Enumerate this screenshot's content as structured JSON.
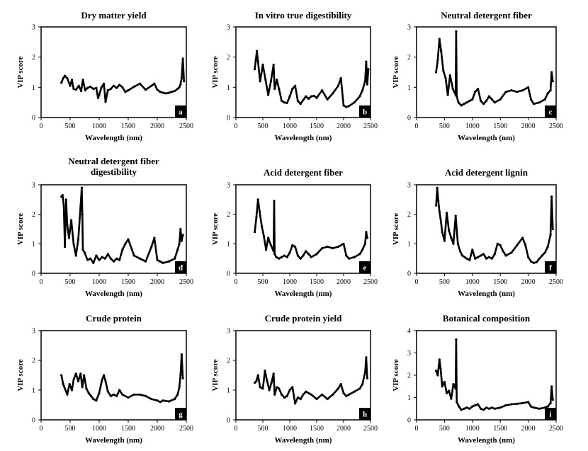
{
  "chart_data": [
    {
      "type": "line",
      "panel": "a",
      "title": "Dry matter yield",
      "xlabel": "Wavelength (nm)",
      "ylabel": "VIP score",
      "xlim": [
        0,
        2500
      ],
      "ylim": [
        0,
        3
      ],
      "xticks": [
        0,
        500,
        1000,
        1500,
        2000,
        2500
      ],
      "yticks": [
        0,
        1,
        2,
        3
      ],
      "grid": false,
      "series": [
        {
          "x": [
            350,
            380,
            410,
            450,
            500,
            530,
            560,
            600,
            650,
            690,
            720,
            760,
            800,
            850,
            900,
            950,
            980,
            1000,
            1040,
            1080,
            1110,
            1150,
            1200,
            1250,
            1300,
            1350,
            1400,
            1450,
            1500,
            1600,
            1700,
            1800,
            1900,
            1950,
            2000,
            2050,
            2100,
            2150,
            2200,
            2250,
            2300,
            2350,
            2380,
            2400,
            2420,
            2440,
            2460
          ],
          "y": [
            1.15,
            1.3,
            1.38,
            1.3,
            1.05,
            1.25,
            0.95,
            0.92,
            1.05,
            0.88,
            1.25,
            0.9,
            0.98,
            1.02,
            0.95,
            0.98,
            0.65,
            0.75,
            1.0,
            1.12,
            0.52,
            0.9,
            0.95,
            1.05,
            0.98,
            1.08,
            1.0,
            0.85,
            0.9,
            1.02,
            1.12,
            0.92,
            1.05,
            1.12,
            0.92,
            0.85,
            0.82,
            0.8,
            0.82,
            0.85,
            0.88,
            0.95,
            1.0,
            1.1,
            1.3,
            1.95,
            1.2
          ]
        }
      ]
    },
    {
      "type": "line",
      "panel": "b",
      "title": "In vitro true digestibility",
      "xlabel": "Wavelength (nm)",
      "ylabel": "VIP score",
      "xlim": [
        0,
        2500
      ],
      "ylim": [
        0,
        3
      ],
      "xticks": [
        0,
        500,
        1000,
        1500,
        2000,
        2500
      ],
      "yticks": [
        0,
        1,
        2,
        3
      ],
      "grid": false,
      "series": [
        {
          "x": [
            350,
            370,
            390,
            410,
            450,
            500,
            550,
            600,
            650,
            700,
            720,
            760,
            800,
            850,
            900,
            950,
            1000,
            1050,
            1100,
            1150,
            1200,
            1250,
            1300,
            1350,
            1400,
            1450,
            1500,
            1600,
            1700,
            1800,
            1900,
            1950,
            2000,
            2050,
            2100,
            2200,
            2300,
            2350,
            2400,
            2420,
            2440,
            2460
          ],
          "y": [
            1.6,
            1.9,
            2.2,
            1.85,
            1.2,
            1.75,
            1.25,
            0.75,
            1.2,
            1.75,
            0.95,
            1.25,
            0.95,
            0.55,
            0.5,
            0.48,
            0.7,
            0.95,
            1.05,
            0.55,
            0.45,
            0.58,
            0.7,
            0.62,
            0.7,
            0.72,
            0.65,
            0.9,
            0.6,
            0.8,
            1.05,
            1.3,
            0.4,
            0.35,
            0.38,
            0.5,
            0.7,
            0.9,
            1.2,
            1.85,
            1.1,
            1.6
          ]
        }
      ]
    },
    {
      "type": "line",
      "panel": "c",
      "title": "Neutral detergent fiber",
      "xlabel": "Wavelength (nm)",
      "ylabel": "VIP score",
      "xlim": [
        0,
        2500
      ],
      "ylim": [
        0,
        3
      ],
      "xticks": [
        0,
        500,
        1000,
        1500,
        2000,
        2500
      ],
      "yticks": [
        0,
        1,
        2,
        3
      ],
      "grid": false,
      "series": [
        {
          "x": [
            350,
            380,
            410,
            440,
            480,
            520,
            560,
            600,
            650,
            700,
            710,
            720,
            750,
            800,
            850,
            900,
            950,
            1000,
            1050,
            1100,
            1150,
            1200,
            1250,
            1300,
            1350,
            1400,
            1500,
            1600,
            1700,
            1800,
            1900,
            2000,
            2050,
            2100,
            2200,
            2300,
            2350,
            2400,
            2420,
            2440
          ],
          "y": [
            1.5,
            1.9,
            2.6,
            2.2,
            1.55,
            1.3,
            0.75,
            1.4,
            0.95,
            0.75,
            2.85,
            0.7,
            0.5,
            0.4,
            0.45,
            0.5,
            0.55,
            0.6,
            0.85,
            0.95,
            0.55,
            0.45,
            0.55,
            0.7,
            0.6,
            0.5,
            0.6,
            0.85,
            0.9,
            0.85,
            0.9,
            1.0,
            0.6,
            0.45,
            0.5,
            0.6,
            0.8,
            0.9,
            1.5,
            1.2
          ]
        }
      ]
    },
    {
      "type": "line",
      "panel": "d",
      "title": "Neutral detergent fiber digestibility",
      "xlabel": "Wavelength (nm)",
      "ylabel": "VIP score",
      "xlim": [
        0,
        2500
      ],
      "ylim": [
        0,
        3
      ],
      "xticks": [
        0,
        500,
        1000,
        1500,
        2000,
        2500
      ],
      "yticks": [
        0,
        1,
        2,
        3
      ],
      "grid": false,
      "series": [
        {
          "x": [
            350,
            370,
            390,
            410,
            430,
            450,
            480,
            520,
            560,
            600,
            640,
            680,
            700,
            710,
            720,
            750,
            800,
            850,
            900,
            950,
            1000,
            1050,
            1100,
            1150,
            1200,
            1250,
            1300,
            1350,
            1400,
            1450,
            1500,
            1600,
            1700,
            1800,
            1900,
            1950,
            2000,
            2050,
            2100,
            2200,
            2300,
            2350,
            2380,
            2400,
            2420,
            2440
          ],
          "y": [
            2.6,
            2.65,
            2.3,
            0.9,
            2.5,
            1.65,
            1.2,
            1.8,
            1.0,
            0.6,
            1.15,
            2.3,
            2.9,
            2.0,
            0.8,
            0.7,
            0.45,
            0.5,
            0.35,
            0.6,
            0.45,
            0.55,
            0.5,
            0.65,
            0.5,
            0.4,
            0.5,
            0.45,
            0.8,
            1.0,
            1.15,
            0.6,
            0.5,
            0.4,
            0.9,
            1.2,
            0.45,
            0.4,
            0.35,
            0.4,
            0.5,
            0.8,
            1.0,
            1.5,
            1.1,
            1.3
          ]
        }
      ]
    },
    {
      "type": "line",
      "panel": "e",
      "title": "Acid detergent fiber",
      "xlabel": "Wavelength (nm)",
      "ylabel": "VIP score",
      "xlim": [
        0,
        2500
      ],
      "ylim": [
        0,
        3
      ],
      "xticks": [
        0,
        500,
        1000,
        1500,
        2000,
        2500
      ],
      "yticks": [
        0,
        1,
        2,
        3
      ],
      "grid": false,
      "series": [
        {
          "x": [
            350,
            380,
            410,
            440,
            480,
            520,
            560,
            600,
            650,
            700,
            710,
            720,
            750,
            800,
            850,
            900,
            950,
            1000,
            1050,
            1100,
            1150,
            1200,
            1250,
            1300,
            1350,
            1400,
            1500,
            1600,
            1700,
            1800,
            1900,
            2000,
            2050,
            2100,
            2200,
            2300,
            2350,
            2400,
            2420,
            2440
          ],
          "y": [
            1.4,
            1.9,
            2.5,
            2.1,
            1.6,
            1.25,
            0.8,
            1.2,
            0.95,
            0.75,
            2.45,
            0.65,
            0.55,
            0.5,
            0.55,
            0.6,
            0.55,
            0.7,
            0.95,
            0.9,
            0.6,
            0.5,
            0.6,
            0.75,
            0.65,
            0.55,
            0.65,
            0.85,
            0.9,
            0.85,
            0.9,
            1.0,
            0.6,
            0.5,
            0.55,
            0.65,
            0.8,
            1.0,
            1.4,
            1.2
          ]
        }
      ]
    },
    {
      "type": "line",
      "panel": "f",
      "title": "Acid detergent lignin",
      "xlabel": "Wavelength (nm)",
      "ylabel": "VIP score",
      "xlim": [
        0,
        2500
      ],
      "ylim": [
        0,
        3
      ],
      "xticks": [
        0,
        500,
        1000,
        1500,
        2000,
        2500
      ],
      "yticks": [
        0,
        1,
        2,
        3
      ],
      "grid": false,
      "series": [
        {
          "x": [
            350,
            370,
            390,
            410,
            430,
            460,
            500,
            540,
            580,
            620,
            660,
            700,
            740,
            780,
            820,
            860,
            900,
            950,
            1000,
            1050,
            1100,
            1150,
            1200,
            1250,
            1300,
            1350,
            1400,
            1450,
            1500,
            1550,
            1600,
            1700,
            1800,
            1900,
            1950,
            2000,
            2050,
            2100,
            2150,
            2200,
            2250,
            2300,
            2350,
            2400,
            2420,
            2440
          ],
          "y": [
            2.3,
            2.9,
            2.45,
            2.1,
            1.85,
            1.4,
            1.1,
            2.05,
            1.45,
            1.2,
            1.0,
            1.95,
            1.0,
            0.75,
            0.6,
            0.55,
            0.5,
            0.45,
            0.8,
            0.5,
            0.55,
            0.6,
            0.65,
            0.5,
            0.55,
            0.5,
            0.65,
            1.0,
            0.95,
            0.75,
            0.6,
            0.7,
            0.95,
            1.2,
            0.95,
            0.55,
            0.4,
            0.35,
            0.38,
            0.5,
            0.6,
            0.7,
            0.9,
            1.3,
            2.6,
            1.5
          ]
        }
      ]
    },
    {
      "type": "line",
      "panel": "g",
      "title": "Crude protein",
      "xlabel": "Wavelength (nm)",
      "ylabel": "VIP score",
      "xlim": [
        0,
        2500
      ],
      "ylim": [
        0,
        3
      ],
      "xticks": [
        0,
        500,
        1000,
        1500,
        2000,
        2500
      ],
      "yticks": [
        0,
        1,
        2,
        3
      ],
      "grid": false,
      "series": [
        {
          "x": [
            350,
            380,
            410,
            450,
            490,
            530,
            560,
            600,
            640,
            680,
            710,
            740,
            780,
            820,
            860,
            900,
            950,
            1000,
            1050,
            1080,
            1110,
            1150,
            1200,
            1250,
            1300,
            1350,
            1400,
            1500,
            1600,
            1700,
            1800,
            1900,
            2000,
            2050,
            2100,
            2200,
            2300,
            2350,
            2380,
            2400,
            2420,
            2440
          ],
          "y": [
            1.5,
            1.2,
            1.05,
            0.85,
            1.2,
            1.0,
            1.35,
            1.55,
            1.3,
            1.55,
            1.1,
            1.5,
            1.05,
            0.9,
            0.8,
            0.7,
            0.65,
            0.9,
            1.35,
            1.5,
            1.3,
            0.95,
            0.8,
            0.85,
            0.8,
            1.0,
            0.85,
            0.75,
            0.85,
            0.85,
            0.8,
            0.7,
            0.65,
            0.6,
            0.65,
            0.62,
            0.7,
            0.85,
            1.1,
            1.5,
            2.2,
            1.4
          ]
        }
      ]
    },
    {
      "type": "line",
      "panel": "h",
      "title": "Crude protein yield",
      "xlabel": "Wavelength (nm)",
      "ylabel": "VIP score",
      "xlim": [
        0,
        2500
      ],
      "ylim": [
        0,
        3
      ],
      "xticks": [
        0,
        500,
        1000,
        1500,
        2000,
        2500
      ],
      "yticks": [
        0,
        1,
        2,
        3
      ],
      "grid": false,
      "series": [
        {
          "x": [
            350,
            380,
            410,
            450,
            500,
            540,
            580,
            620,
            660,
            700,
            720,
            760,
            800,
            850,
            900,
            950,
            1000,
            1050,
            1100,
            1150,
            1200,
            1250,
            1300,
            1350,
            1400,
            1500,
            1600,
            1700,
            1800,
            1900,
            1950,
            2000,
            2050,
            2100,
            2200,
            2300,
            2350,
            2400,
            2420,
            2440
          ],
          "y": [
            1.25,
            1.3,
            1.5,
            1.1,
            1.05,
            1.65,
            1.3,
            1.0,
            1.25,
            1.55,
            0.85,
            1.1,
            1.05,
            0.85,
            0.75,
            0.8,
            1.0,
            1.1,
            0.55,
            0.75,
            0.7,
            0.85,
            0.95,
            0.9,
            0.85,
            0.7,
            0.85,
            0.7,
            0.85,
            1.05,
            1.2,
            0.9,
            0.8,
            0.85,
            0.95,
            1.05,
            1.2,
            1.6,
            2.1,
            1.4
          ]
        }
      ]
    },
    {
      "type": "line",
      "panel": "i",
      "title": "Botanical composition",
      "xlabel": "Wavelength (nm)",
      "ylabel": "VIP score",
      "xlim": [
        0,
        2500
      ],
      "ylim": [
        0,
        4
      ],
      "xticks": [
        0,
        500,
        1000,
        1500,
        2000,
        2500
      ],
      "yticks": [
        0,
        1,
        2,
        3,
        4
      ],
      "grid": false,
      "series": [
        {
          "x": [
            350,
            380,
            410,
            430,
            460,
            500,
            540,
            580,
            620,
            660,
            700,
            710,
            720,
            760,
            800,
            850,
            900,
            950,
            1000,
            1050,
            1100,
            1150,
            1200,
            1250,
            1300,
            1350,
            1400,
            1500,
            1600,
            1700,
            1800,
            1900,
            2000,
            2050,
            2100,
            2200,
            2300,
            2350,
            2400,
            2420,
            2440
          ],
          "y": [
            2.2,
            2.0,
            2.7,
            2.3,
            1.5,
            1.7,
            1.2,
            1.3,
            0.95,
            1.6,
            1.4,
            3.6,
            0.8,
            0.6,
            0.45,
            0.5,
            0.55,
            0.5,
            0.6,
            0.65,
            0.7,
            0.5,
            0.45,
            0.55,
            0.5,
            0.55,
            0.5,
            0.55,
            0.65,
            0.7,
            0.72,
            0.75,
            0.8,
            0.6,
            0.55,
            0.5,
            0.55,
            0.6,
            0.75,
            1.5,
            0.9
          ]
        }
      ]
    }
  ]
}
